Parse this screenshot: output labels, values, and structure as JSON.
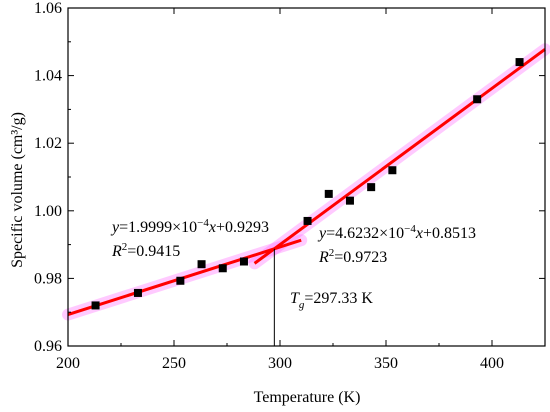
{
  "chart_data": {
    "type": "scatter",
    "xlabel": "Temperature (K)",
    "ylabel": "Specific volume (cm³/g)",
    "xlim": [
      200,
      425
    ],
    "ylim": [
      0.96,
      1.06
    ],
    "x_ticks": [
      "200",
      "250",
      "300",
      "350",
      "400"
    ],
    "y_ticks": [
      "0.96",
      "0.98",
      "1.00",
      "1.02",
      "1.04",
      "1.06"
    ],
    "x_tick_values": [
      200,
      250,
      300,
      350,
      400
    ],
    "y_tick_values": [
      0.96,
      0.98,
      1.0,
      1.02,
      1.04,
      1.06
    ],
    "points": [
      {
        "x": 213,
        "y": 0.972
      },
      {
        "x": 233,
        "y": 0.9757
      },
      {
        "x": 253,
        "y": 0.9793
      },
      {
        "x": 263,
        "y": 0.9842
      },
      {
        "x": 273,
        "y": 0.983
      },
      {
        "x": 283,
        "y": 0.985
      },
      {
        "x": 313,
        "y": 0.997
      },
      {
        "x": 323,
        "y": 1.005
      },
      {
        "x": 333,
        "y": 1.003
      },
      {
        "x": 343,
        "y": 1.007
      },
      {
        "x": 353,
        "y": 1.012
      },
      {
        "x": 393,
        "y": 1.033
      },
      {
        "x": 413,
        "y": 1.044
      }
    ],
    "fit_lines": [
      {
        "slope": 0.00019999,
        "intercept": 0.9293,
        "x_range": [
          200,
          310
        ],
        "color": "#ff0000",
        "equation": "y=1.9999×10⁻⁴x+0.9293",
        "r2": "R²=0.9415"
      },
      {
        "slope": 0.00046232,
        "intercept": 0.8513,
        "x_range": [
          288,
          425
        ],
        "color": "#ff0000",
        "equation": "y=4.6232×10⁻⁴x+0.8513",
        "r2": "R²=0.9723"
      }
    ],
    "tg_line": {
      "x": 297.33,
      "label": "Tg=297.33 K"
    },
    "grid": false,
    "colors": {
      "points": "#000000",
      "fit": "#ff0000",
      "band": "#ff66ff"
    }
  },
  "annotations": {
    "eq1_y": "y",
    "eq1_rest": "=1.9999×10",
    "eq1_exp": "−4",
    "eq1_x": "x",
    "eq1_tail": "+0.9293",
    "r1_R": "R",
    "r1_exp": "2",
    "r1_val": "=0.9415",
    "eq2_y": "y",
    "eq2_rest": "=4.6232×10",
    "eq2_exp": "−4",
    "eq2_x": "x",
    "eq2_tail": "+0.8513",
    "r2_R": "R",
    "r2_exp": "2",
    "r2_val": "=0.9723",
    "tg_T": "T",
    "tg_sub": "g",
    "tg_val": "=297.33 K"
  }
}
